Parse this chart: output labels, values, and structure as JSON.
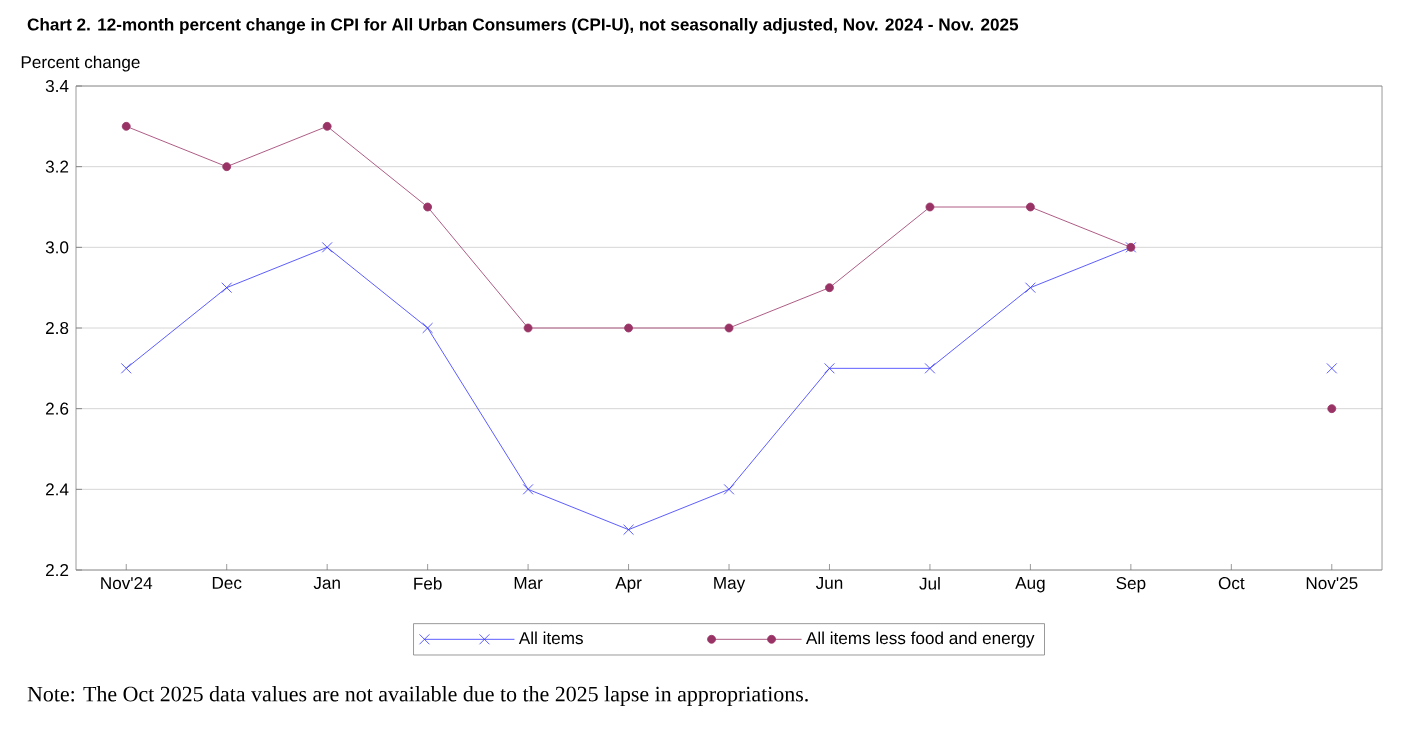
{
  "chart_data": {
    "type": "line",
    "title": "Chart 2. 12-month percent change in CPI for All Urban Consumers (CPI-U), not seasonally adjusted, Nov. 2024 - Nov. 2025",
    "ylabel": "Percent change",
    "categories": [
      "Nov'24",
      "Dec",
      "Jan",
      "Feb",
      "Mar",
      "Apr",
      "May",
      "Jun",
      "Jul",
      "Aug",
      "Sep",
      "Oct",
      "Nov'25"
    ],
    "series": [
      {
        "name": "All items",
        "color": "#3333ff",
        "marker": "cross",
        "values": [
          2.7,
          2.9,
          3.0,
          2.8,
          2.4,
          2.3,
          2.4,
          2.7,
          2.7,
          2.9,
          3.0,
          null,
          2.7
        ]
      },
      {
        "name": "All items less food and energy",
        "color": "#993366",
        "marker": "circle",
        "values": [
          3.3,
          3.2,
          3.3,
          3.1,
          2.8,
          2.8,
          2.8,
          2.9,
          3.1,
          3.1,
          3.0,
          null,
          2.6
        ]
      }
    ],
    "ylim": [
      2.2,
      3.4
    ],
    "yticks": [
      2.2,
      2.4,
      2.6,
      2.8,
      {
        "value": 3.0,
        "label": "3.0"
      },
      3.2,
      3.4
    ],
    "grid": "y",
    "legend": "bottom",
    "annotations": [
      "Note: The Oct 2025 data values are not available due to the 2025 lapse in appropriations."
    ]
  }
}
